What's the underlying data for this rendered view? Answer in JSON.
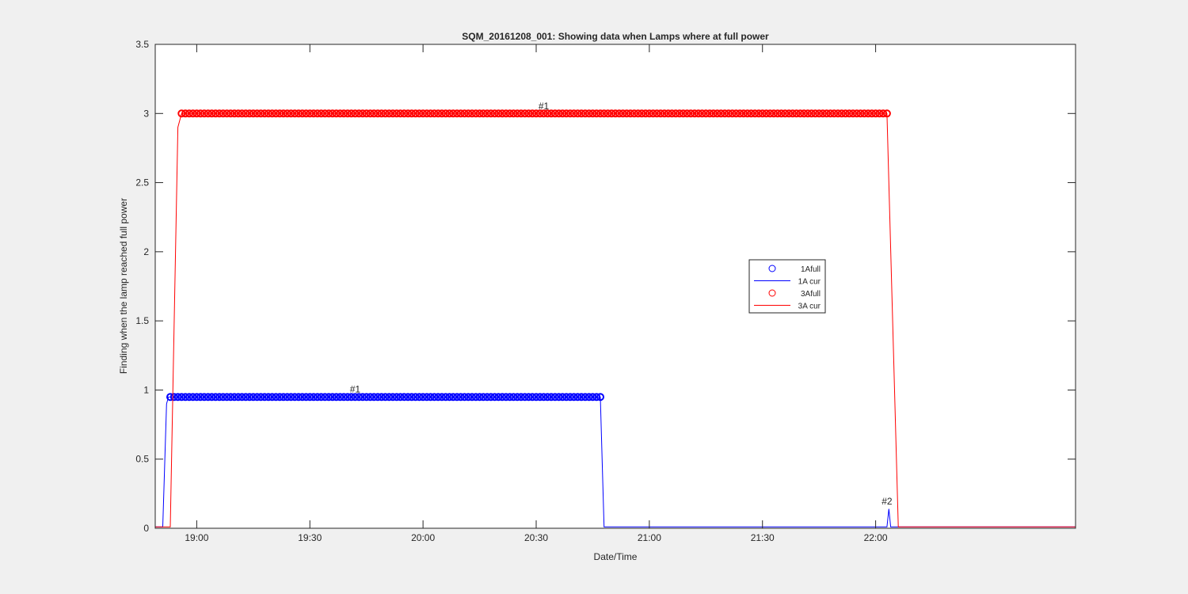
{
  "chart_data": {
    "type": "line",
    "title": "SQM_20161208_001: Showing data when Lamps where at full power",
    "xlabel": "Date/Time",
    "ylabel": "Finding when the lamp reached full power",
    "x_unit": "time (HH:MM)",
    "xlim": [
      "18:49",
      "22:53"
    ],
    "ylim": [
      0,
      3.5
    ],
    "x_ticks": [
      "19:00",
      "19:30",
      "20:00",
      "20:30",
      "21:00",
      "21:30",
      "22:00"
    ],
    "y_ticks": [
      "0",
      "0.5",
      "1",
      "1.5",
      "2",
      "2.5",
      "3",
      "3.5"
    ],
    "grid": false,
    "legend_position": "center-right",
    "series": [
      {
        "name": "1Afull",
        "kind": "markers",
        "marker": "circle",
        "color": "#0000ff",
        "x_start": "18:53",
        "x_end": "20:47",
        "step_minutes": 1,
        "y": 0.95
      },
      {
        "name": "1A cur",
        "kind": "line",
        "color": "#0000ff",
        "points": [
          [
            "18:49",
            0.01
          ],
          [
            "18:51",
            0.01
          ],
          [
            "18:52",
            0.9
          ],
          [
            "18:52.5",
            0.95
          ],
          [
            "20:47",
            0.95
          ],
          [
            "20:48",
            0.01
          ],
          [
            "22:03",
            0.01
          ],
          [
            "22:03.5",
            0.14
          ],
          [
            "22:04",
            0.01
          ],
          [
            "22:53",
            0.01
          ]
        ]
      },
      {
        "name": "3Afull",
        "kind": "markers",
        "marker": "circle",
        "color": "#ff0000",
        "x_start": "18:56",
        "x_end": "22:03",
        "step_minutes": 1,
        "y": 3.0
      },
      {
        "name": "3A cur",
        "kind": "line",
        "color": "#ff0000",
        "points": [
          [
            "18:49",
            0.01
          ],
          [
            "18:53",
            0.01
          ],
          [
            "18:55",
            2.9
          ],
          [
            "18:56",
            3.0
          ],
          [
            "22:03",
            3.0
          ],
          [
            "22:06",
            0.01
          ],
          [
            "22:53",
            0.01
          ]
        ]
      }
    ],
    "annotations": [
      {
        "text": "#1",
        "x": "19:42",
        "y": 0.97
      },
      {
        "text": "#1",
        "x": "20:32",
        "y": 3.02
      },
      {
        "text": "#2",
        "x": "22:03",
        "y": 0.16
      }
    ]
  }
}
